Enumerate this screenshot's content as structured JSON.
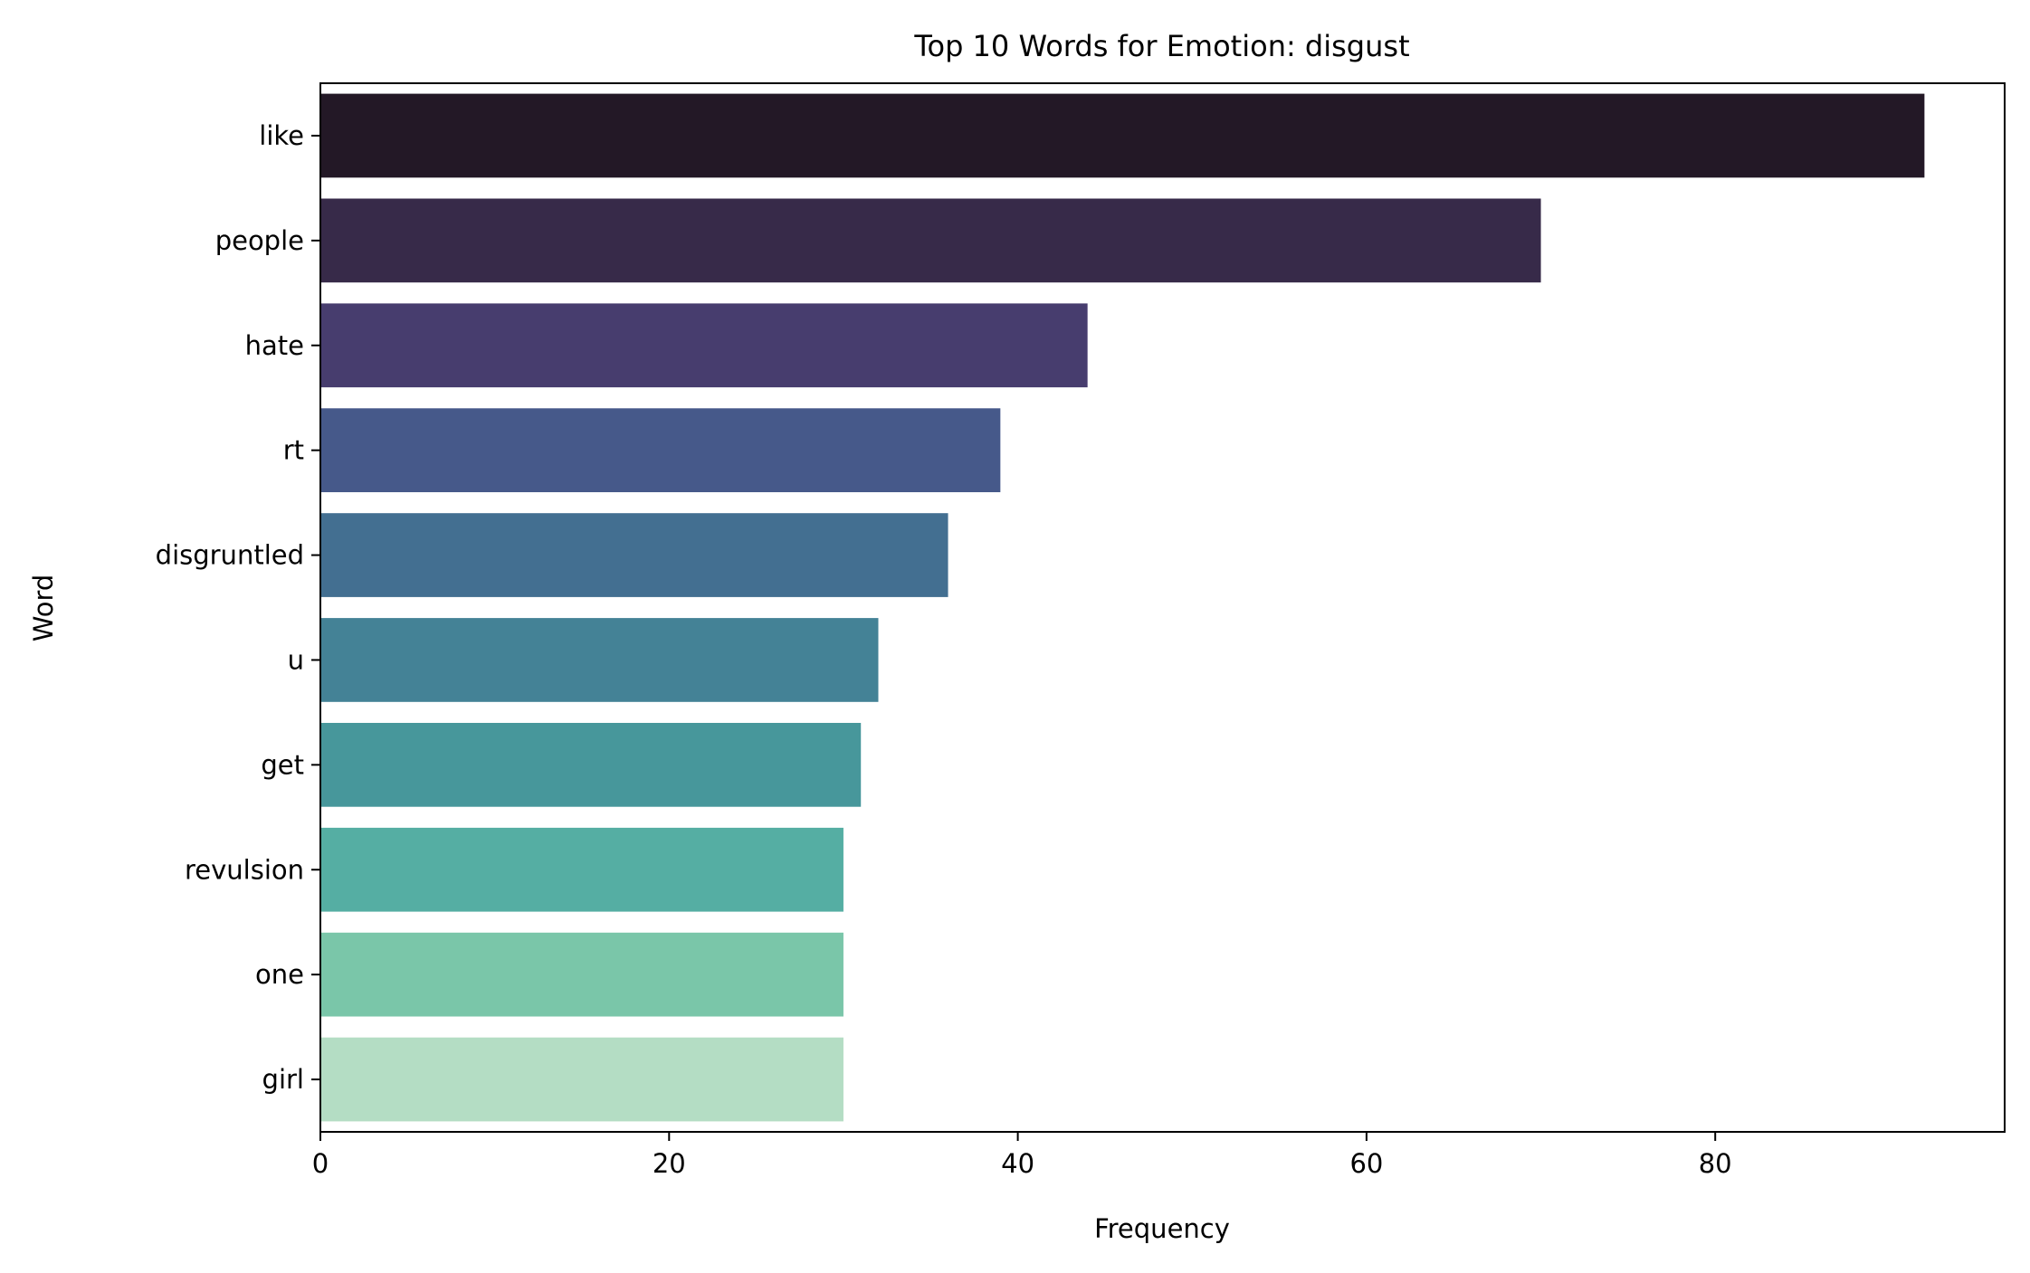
{
  "chart_data": {
    "type": "bar",
    "orientation": "horizontal",
    "title": "Top 10 Words for Emotion: disgust",
    "xlabel": "Frequency",
    "ylabel": "Word",
    "categories": [
      "like",
      "people",
      "hate",
      "rt",
      "disgruntled",
      "u",
      "get",
      "revulsion",
      "one",
      "girl"
    ],
    "values": [
      92,
      70,
      44,
      39,
      36,
      32,
      31,
      30,
      30,
      30
    ],
    "colors": [
      "#231826",
      "#372a49",
      "#473d6e",
      "#46598a",
      "#436f91",
      "#448296",
      "#47979b",
      "#55aea3",
      "#7ac6a9",
      "#b4ddc4"
    ],
    "xlim": [
      0,
      96.6
    ],
    "xticks": [
      0,
      20,
      40,
      60,
      80
    ],
    "grid": false,
    "legend": "none"
  }
}
